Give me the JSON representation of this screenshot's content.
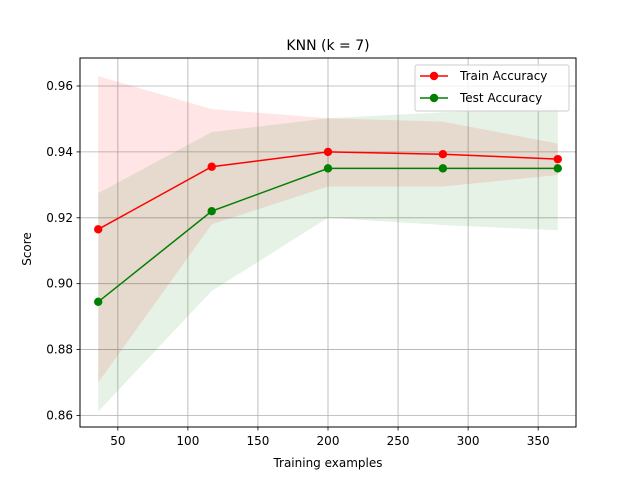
{
  "chart_data": {
    "type": "line",
    "title": "KNN (k = 7)",
    "xlabel": "Training examples",
    "ylabel": "Score",
    "xlim": [
      23,
      377
    ],
    "ylim": [
      0.8565,
      0.9685
    ],
    "xticks": [
      50,
      100,
      150,
      200,
      250,
      300,
      350
    ],
    "yticks": [
      0.86,
      0.88,
      0.9,
      0.92,
      0.94,
      0.96
    ],
    "xtick_labels": [
      "50",
      "100",
      "150",
      "200",
      "250",
      "300",
      "350"
    ],
    "ytick_labels": [
      "0.86",
      "0.88",
      "0.90",
      "0.92",
      "0.94",
      "0.96"
    ],
    "grid": true,
    "legend_position": "upper-right",
    "x": [
      36,
      117,
      200,
      282,
      364
    ],
    "series": [
      {
        "name": "Train Accuracy",
        "color": "#ff0000",
        "values": [
          0.9165,
          0.9355,
          0.94,
          0.9393,
          0.9378
        ],
        "band_upper": [
          0.963,
          0.953,
          0.9502,
          0.9492,
          0.9425
        ],
        "band_lower": [
          0.87,
          0.918,
          0.9295,
          0.9295,
          0.933
        ],
        "band_color": "#ff0000"
      },
      {
        "name": "Test Accuracy",
        "color": "#008000",
        "values": [
          0.8945,
          0.922,
          0.935,
          0.935,
          0.935
        ],
        "band_upper": [
          0.9275,
          0.946,
          0.9502,
          0.952,
          0.9535
        ],
        "band_lower": [
          0.8612,
          0.8978,
          0.92,
          0.9178,
          0.9162
        ],
        "band_color": "#008000"
      }
    ]
  }
}
